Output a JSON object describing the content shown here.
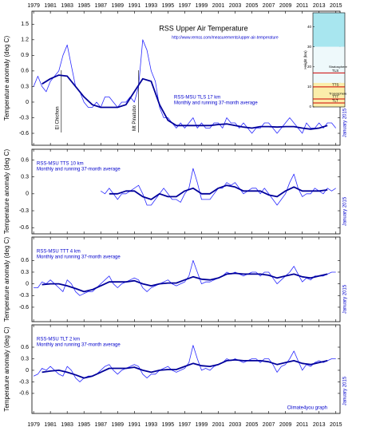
{
  "chart_data": [
    {
      "type": "line",
      "title": "RSS Upper Air Temperature",
      "subtitle": "http://www.remss.com/measurements/upper-air-temperature",
      "ylabel": "Temperature anomaly (deg C)",
      "label": "RSS-MSU TLS 17 km",
      "note": "Monthly and running 37-month average",
      "side_label": "January 2015",
      "events": [
        {
          "label": "El Chichon",
          "x": 1982.3
        },
        {
          "label": "Mt Pinatubo",
          "x": 1991.5
        }
      ],
      "xlim": [
        1978.8,
        2015.5
      ],
      "xticks": [
        1979,
        1981,
        1983,
        1985,
        1987,
        1989,
        1991,
        1993,
        1995,
        1997,
        1999,
        2001,
        2003,
        2005,
        2007,
        2009,
        2011,
        2013,
        2015
      ],
      "ylim": [
        -0.83,
        1.75
      ],
      "yticks": [
        -0.6,
        -0.3,
        0,
        0.3,
        0.6,
        0.9,
        1.2,
        1.5
      ],
      "x": [
        1979,
        1979.5,
        1980,
        1980.5,
        1981,
        1981.5,
        1982,
        1982.5,
        1983,
        1983.5,
        1984,
        1984.5,
        1985,
        1985.5,
        1986,
        1986.5,
        1987,
        1987.5,
        1988,
        1988.5,
        1989,
        1989.5,
        1990,
        1990.5,
        1991,
        1991.5,
        1992,
        1992.5,
        1993,
        1993.5,
        1994,
        1994.5,
        1995,
        1995.5,
        1996,
        1996.5,
        1997,
        1997.5,
        1998,
        1998.5,
        1999,
        1999.5,
        2000,
        2000.5,
        2001,
        2001.5,
        2002,
        2002.5,
        2003,
        2003.5,
        2004,
        2004.5,
        2005,
        2005.5,
        2006,
        2006.5,
        2007,
        2007.5,
        2008,
        2008.5,
        2009,
        2009.5,
        2010,
        2010.5,
        2011,
        2011.5,
        2012,
        2012.5,
        2013,
        2013.5,
        2014,
        2014.5,
        2015
      ],
      "series": [
        {
          "color": "#2a2aff",
          "values": [
            0.3,
            0.5,
            0.3,
            0.2,
            0.4,
            0.5,
            0.6,
            0.9,
            1.1,
            0.7,
            0.3,
            0.2,
            0.0,
            -0.1,
            -0.1,
            0.0,
            -0.1,
            0.1,
            0.1,
            0.0,
            -0.1,
            0.0,
            0.0,
            0.1,
            0.0,
            0.3,
            1.2,
            1.0,
            0.6,
            0.4,
            -0.1,
            -0.3,
            -0.3,
            -0.4,
            -0.5,
            -0.4,
            -0.5,
            -0.4,
            -0.3,
            -0.5,
            -0.4,
            -0.5,
            -0.5,
            -0.4,
            -0.4,
            -0.5,
            -0.3,
            -0.4,
            -0.4,
            -0.5,
            -0.4,
            -0.5,
            -0.6,
            -0.5,
            -0.5,
            -0.4,
            -0.4,
            -0.5,
            -0.6,
            -0.5,
            -0.4,
            -0.3,
            -0.4,
            -0.5,
            -0.6,
            -0.4,
            -0.5,
            -0.5,
            -0.4,
            -0.5,
            -0.4,
            -0.4,
            -0.5
          ]
        },
        {
          "color": "#00009a",
          "x": [
            1980,
            1981,
            1982,
            1983,
            1984,
            1985,
            1986,
            1987,
            1988,
            1989,
            1990,
            1991,
            1992,
            1993,
            1994,
            1995,
            1996,
            1997,
            1998,
            1999,
            2000,
            2001,
            2002,
            2003,
            2004,
            2005,
            2006,
            2007,
            2008,
            2009,
            2010,
            2011,
            2012,
            2013,
            2014
          ],
          "values": [
            0.35,
            0.45,
            0.52,
            0.5,
            0.3,
            0.1,
            -0.05,
            -0.1,
            -0.1,
            -0.1,
            -0.05,
            0.2,
            0.45,
            0.4,
            -0.05,
            -0.35,
            -0.45,
            -0.45,
            -0.45,
            -0.45,
            -0.45,
            -0.43,
            -0.42,
            -0.45,
            -0.48,
            -0.5,
            -0.47,
            -0.47,
            -0.48,
            -0.47,
            -0.47,
            -0.5,
            -0.52,
            -0.5,
            -0.45
          ]
        }
      ]
    },
    {
      "type": "line",
      "ylabel": "Temperature anomaly (deg C)",
      "label": "RSS-MSU TTS 10 km",
      "note": "Monthly and running 37-month average",
      "side_label": "January 2015",
      "xlim": [
        1978.8,
        2015.5
      ],
      "xticks": [
        1979,
        1981,
        1983,
        1985,
        1987,
        1989,
        1991,
        1993,
        1995,
        1997,
        1999,
        2001,
        2003,
        2005,
        2007,
        2009,
        2011,
        2013,
        2015
      ],
      "ylim": [
        -0.71,
        0.79
      ],
      "yticks": [
        -0.6,
        -0.3,
        0,
        0.3,
        0.6
      ],
      "x": [
        1979,
        1979.5,
        1980,
        1980.5,
        1981,
        1981.5,
        1982,
        1982.5,
        1983,
        1983.5,
        1984,
        1984.5,
        1985,
        1985.5,
        1986,
        1986.5,
        1987,
        1987.5,
        1988,
        1988.5,
        1989,
        1989.5,
        1990,
        1990.5,
        1991,
        1991.5,
        1992,
        1992.5,
        1993,
        1993.5,
        1994,
        1994.5,
        1995,
        1995.5,
        1996,
        1996.5,
        1997,
        1997.5,
        1998,
        1998.5,
        1999,
        1999.5,
        2000,
        2000.5,
        2001,
        2001.5,
        2002,
        2002.5,
        2003,
        2003.5,
        2004,
        2004.5,
        2005,
        2005.5,
        2006,
        2006.5,
        2007,
        2007.5,
        2008,
        2008.5,
        2009,
        2009.5,
        2010,
        2010.5,
        2011,
        2011.5,
        2012,
        2012.5,
        2013,
        2013.5,
        2014,
        2014.5,
        2015
      ],
      "series": [
        {
          "color": "#2a2aff",
          "values": [
            null,
            null,
            null,
            null,
            null,
            null,
            null,
            null,
            null,
            null,
            null,
            null,
            null,
            null,
            null,
            null,
            0.05,
            0.0,
            0.1,
            0.0,
            -0.1,
            0.0,
            0.0,
            0.05,
            0.1,
            0.15,
            0.0,
            -0.2,
            -0.2,
            -0.1,
            0.0,
            0.1,
            0.0,
            -0.1,
            -0.1,
            -0.15,
            0.0,
            0.1,
            0.45,
            0.2,
            -0.1,
            -0.1,
            -0.1,
            0.0,
            0.1,
            0.1,
            0.2,
            0.15,
            0.2,
            0.1,
            0.0,
            0.05,
            0.1,
            0.1,
            0.0,
            0.1,
            0.0,
            -0.1,
            -0.2,
            -0.1,
            0.0,
            0.2,
            0.35,
            0.1,
            -0.05,
            0.0,
            0.0,
            0.1,
            0.05,
            0.0,
            0.1,
            0.05,
            0.1
          ]
        },
        {
          "color": "#00009a",
          "x": [
            1988,
            1989,
            1990,
            1991,
            1992,
            1993,
            1994,
            1995,
            1996,
            1997,
            1998,
            1999,
            2000,
            2001,
            2002,
            2003,
            2004,
            2005,
            2006,
            2007,
            2008,
            2009,
            2010,
            2011,
            2012,
            2013,
            2014
          ],
          "values": [
            0.0,
            0.0,
            0.05,
            0.05,
            -0.05,
            -0.1,
            0.0,
            -0.05,
            -0.05,
            0.05,
            0.1,
            0.0,
            0.0,
            0.1,
            0.15,
            0.12,
            0.05,
            0.05,
            0.05,
            -0.02,
            -0.05,
            0.05,
            0.12,
            0.05,
            0.05,
            0.05,
            0.07
          ]
        }
      ]
    },
    {
      "type": "line",
      "ylabel": "Temperature anomaly (deg C)",
      "label": "RSS-MSU TTT 4 km",
      "note": "Monthly and running 37-month average",
      "side_label": "January 2015",
      "xlim": [
        1978.8,
        2015.5
      ],
      "xticks": [
        1979,
        1981,
        1983,
        1985,
        1987,
        1989,
        1991,
        1993,
        1995,
        1997,
        1999,
        2001,
        2003,
        2005,
        2007,
        2009,
        2011,
        2013,
        2015
      ],
      "ylim": [
        -0.97,
        1.2
      ],
      "yticks": [
        -0.6,
        -0.3,
        0,
        0.3,
        0.6
      ],
      "x": [
        1979,
        1979.5,
        1980,
        1980.5,
        1981,
        1981.5,
        1982,
        1982.5,
        1983,
        1983.5,
        1984,
        1984.5,
        1985,
        1985.5,
        1986,
        1986.5,
        1987,
        1987.5,
        1988,
        1988.5,
        1989,
        1989.5,
        1990,
        1990.5,
        1991,
        1991.5,
        1992,
        1992.5,
        1993,
        1993.5,
        1994,
        1994.5,
        1995,
        1995.5,
        1996,
        1996.5,
        1997,
        1997.5,
        1998,
        1998.5,
        1999,
        1999.5,
        2000,
        2000.5,
        2001,
        2001.5,
        2002,
        2002.5,
        2003,
        2003.5,
        2004,
        2004.5,
        2005,
        2005.5,
        2006,
        2006.5,
        2007,
        2007.5,
        2008,
        2008.5,
        2009,
        2009.5,
        2010,
        2010.5,
        2011,
        2011.5,
        2012,
        2012.5,
        2013,
        2013.5,
        2014,
        2014.5,
        2015
      ],
      "series": [
        {
          "color": "#2a2aff",
          "values": [
            -0.1,
            -0.1,
            0.05,
            0.0,
            0.1,
            0.0,
            -0.1,
            -0.2,
            0.1,
            0.0,
            -0.2,
            -0.3,
            -0.25,
            -0.2,
            -0.2,
            -0.1,
            0.0,
            0.1,
            0.2,
            0.0,
            -0.1,
            0.0,
            0.05,
            0.1,
            0.15,
            0.1,
            -0.1,
            -0.2,
            -0.1,
            -0.05,
            0.0,
            0.05,
            0.1,
            0.0,
            -0.05,
            0.0,
            0.05,
            0.2,
            0.6,
            0.3,
            0.0,
            0.05,
            0.05,
            0.1,
            0.15,
            0.2,
            0.3,
            0.25,
            0.3,
            0.25,
            0.2,
            0.25,
            0.3,
            0.3,
            0.2,
            0.3,
            0.3,
            0.15,
            0.0,
            0.1,
            0.2,
            0.3,
            0.45,
            0.25,
            0.05,
            0.15,
            0.1,
            0.2,
            0.2,
            0.2,
            0.25,
            0.3,
            0.3
          ]
        },
        {
          "color": "#00009a",
          "x": [
            1980,
            1981,
            1982,
            1983,
            1984,
            1985,
            1986,
            1987,
            1988,
            1989,
            1990,
            1991,
            1992,
            1993,
            1994,
            1995,
            1996,
            1997,
            1998,
            1999,
            2000,
            2001,
            2002,
            2003,
            2004,
            2005,
            2006,
            2007,
            2008,
            2009,
            2010,
            2011,
            2012,
            2013,
            2014
          ],
          "values": [
            -0.02,
            0.0,
            0.0,
            -0.05,
            -0.12,
            -0.2,
            -0.15,
            -0.05,
            0.05,
            0.05,
            0.05,
            0.08,
            0.0,
            -0.05,
            0.0,
            0.02,
            0.02,
            0.1,
            0.18,
            0.12,
            0.1,
            0.15,
            0.25,
            0.27,
            0.25,
            0.25,
            0.25,
            0.22,
            0.15,
            0.2,
            0.25,
            0.18,
            0.15,
            0.2,
            0.25
          ]
        }
      ]
    },
    {
      "type": "line",
      "ylabel": "Temperature anomaly (deg C)",
      "label": "RSS-MSU TLT 2 km",
      "note": "Monthly and running 37-month average",
      "side_label": "January 2015",
      "credit": "Climate4you graph",
      "xlim": [
        1978.8,
        2015.5
      ],
      "xticks": [
        1979,
        1981,
        1983,
        1985,
        1987,
        1989,
        1991,
        1993,
        1995,
        1997,
        1999,
        2001,
        2003,
        2005,
        2007,
        2009,
        2011,
        2013,
        2015
      ],
      "ylim": [
        -1.12,
        1.18
      ],
      "yticks": [
        -0.6,
        -0.3,
        0,
        0.3,
        0.6
      ],
      "x": [
        1979,
        1979.5,
        1980,
        1980.5,
        1981,
        1981.5,
        1982,
        1982.5,
        1983,
        1983.5,
        1984,
        1984.5,
        1985,
        1985.5,
        1986,
        1986.5,
        1987,
        1987.5,
        1988,
        1988.5,
        1989,
        1989.5,
        1990,
        1990.5,
        1991,
        1991.5,
        1992,
        1992.5,
        1993,
        1993.5,
        1994,
        1994.5,
        1995,
        1995.5,
        1996,
        1996.5,
        1997,
        1997.5,
        1998,
        1998.5,
        1999,
        1999.5,
        2000,
        2000.5,
        2001,
        2001.5,
        2002,
        2002.5,
        2003,
        2003.5,
        2004,
        2004.5,
        2005,
        2005.5,
        2006,
        2006.5,
        2007,
        2007.5,
        2008,
        2008.5,
        2009,
        2009.5,
        2010,
        2010.5,
        2011,
        2011.5,
        2012,
        2012.5,
        2013,
        2013.5,
        2014,
        2014.5,
        2015
      ],
      "series": [
        {
          "color": "#2a2aff",
          "values": [
            -0.15,
            -0.1,
            0.05,
            0.0,
            0.1,
            0.0,
            -0.1,
            -0.15,
            0.1,
            0.0,
            -0.2,
            -0.3,
            -0.2,
            -0.15,
            -0.15,
            -0.1,
            0.0,
            0.1,
            0.15,
            0.0,
            -0.1,
            0.0,
            0.05,
            0.1,
            0.15,
            0.1,
            -0.1,
            -0.2,
            -0.1,
            -0.1,
            0.0,
            0.05,
            0.1,
            0.0,
            -0.05,
            0.0,
            0.05,
            0.2,
            0.65,
            0.3,
            0.0,
            0.05,
            0.0,
            0.1,
            0.15,
            0.2,
            0.3,
            0.25,
            0.3,
            0.25,
            0.2,
            0.25,
            0.3,
            0.3,
            0.2,
            0.3,
            0.3,
            0.15,
            -0.05,
            0.1,
            0.15,
            0.3,
            0.5,
            0.25,
            0.0,
            0.15,
            0.1,
            0.2,
            0.25,
            0.2,
            0.25,
            0.3,
            0.3
          ]
        },
        {
          "color": "#00009a",
          "x": [
            1980,
            1981,
            1982,
            1983,
            1984,
            1985,
            1986,
            1987,
            1988,
            1989,
            1990,
            1991,
            1992,
            1993,
            1994,
            1995,
            1996,
            1997,
            1998,
            1999,
            2000,
            2001,
            2002,
            2003,
            2004,
            2005,
            2006,
            2007,
            2008,
            2009,
            2010,
            2011,
            2012,
            2013,
            2014
          ],
          "values": [
            -0.05,
            -0.02,
            0.0,
            -0.05,
            -0.12,
            -0.2,
            -0.15,
            -0.05,
            0.05,
            0.05,
            0.05,
            0.08,
            0.0,
            -0.05,
            0.0,
            0.02,
            0.02,
            0.1,
            0.18,
            0.12,
            0.1,
            0.15,
            0.25,
            0.27,
            0.25,
            0.25,
            0.25,
            0.22,
            0.15,
            0.2,
            0.25,
            0.18,
            0.15,
            0.2,
            0.25
          ]
        }
      ]
    }
  ],
  "inset": {
    "ylabel": "Height (km)",
    "yticks": [
      0,
      10,
      20,
      30,
      40
    ],
    "ylim": [
      0,
      47
    ],
    "layers": [
      {
        "label": "TLS",
        "height": 17
      },
      {
        "label": "TTS",
        "height": 10
      },
      {
        "label": "TTT",
        "height": 4
      },
      {
        "label": "TLT",
        "height": 2
      }
    ],
    "zones": [
      "Stratosphere",
      "Troposphere"
    ]
  }
}
